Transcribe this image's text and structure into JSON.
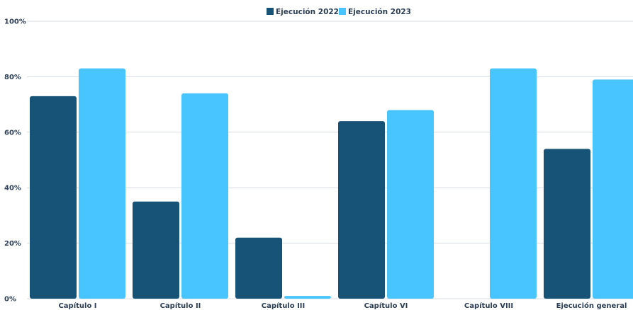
{
  "chart_data": {
    "type": "bar",
    "categories": [
      "Capítulo I",
      "Capítulo II",
      "Capítulo III",
      "Capítulo VI",
      "Capítulo VIII",
      "Ejecución general"
    ],
    "series": [
      {
        "name": "Ejecución 2022",
        "color": "#175377",
        "values": [
          73,
          35,
          22,
          64,
          0,
          54
        ]
      },
      {
        "name": "Ejecución 2023",
        "color": "#48c4fe",
        "values": [
          83,
          74,
          1,
          68,
          83,
          79
        ]
      }
    ],
    "y_ticks": [
      0,
      20,
      40,
      60,
      80,
      100
    ],
    "y_tick_labels": [
      "0%",
      "20%",
      "40%",
      "60%",
      "80%",
      "100%"
    ],
    "ylim": [
      0,
      100
    ],
    "grid": true,
    "legend_position": "top-center"
  }
}
